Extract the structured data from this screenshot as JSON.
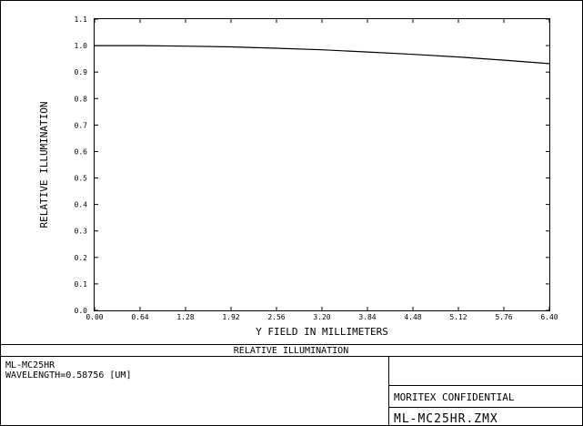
{
  "chart_data": {
    "type": "line",
    "title": "RELATIVE ILLUMINATION",
    "xlabel": "Y FIELD IN MILLIMETERS",
    "ylabel": "RELATIVE ILLUMINATION",
    "xlim": [
      0,
      6.4
    ],
    "ylim": [
      0,
      1.1
    ],
    "x_ticks": [
      "0.00",
      "0.64",
      "1.28",
      "1.92",
      "2.56",
      "3.20",
      "3.84",
      "4.48",
      "5.12",
      "5.76",
      "6.40"
    ],
    "y_ticks": [
      "0.0",
      "0.1",
      "0.2",
      "0.3",
      "0.4",
      "0.5",
      "0.6",
      "0.7",
      "0.8",
      "0.9",
      "1.0",
      "1.1"
    ],
    "grid": false,
    "series": [
      {
        "x": [
          0,
          0.64,
          1.28,
          1.92,
          2.56,
          3.2,
          3.84,
          4.48,
          5.12,
          5.76,
          6.4
        ],
        "values": [
          1.0,
          1.0,
          0.998,
          0.995,
          0.99,
          0.984,
          0.976,
          0.967,
          0.957,
          0.945,
          0.932
        ]
      }
    ]
  },
  "info": {
    "lens_name": "ML-MC25HR",
    "wavelength": "WAVELENGTH=0.58756 [UM]",
    "confidential": "MORITEX CONFIDENTIAL",
    "file_name": "ML-MC25HR.ZMX"
  }
}
